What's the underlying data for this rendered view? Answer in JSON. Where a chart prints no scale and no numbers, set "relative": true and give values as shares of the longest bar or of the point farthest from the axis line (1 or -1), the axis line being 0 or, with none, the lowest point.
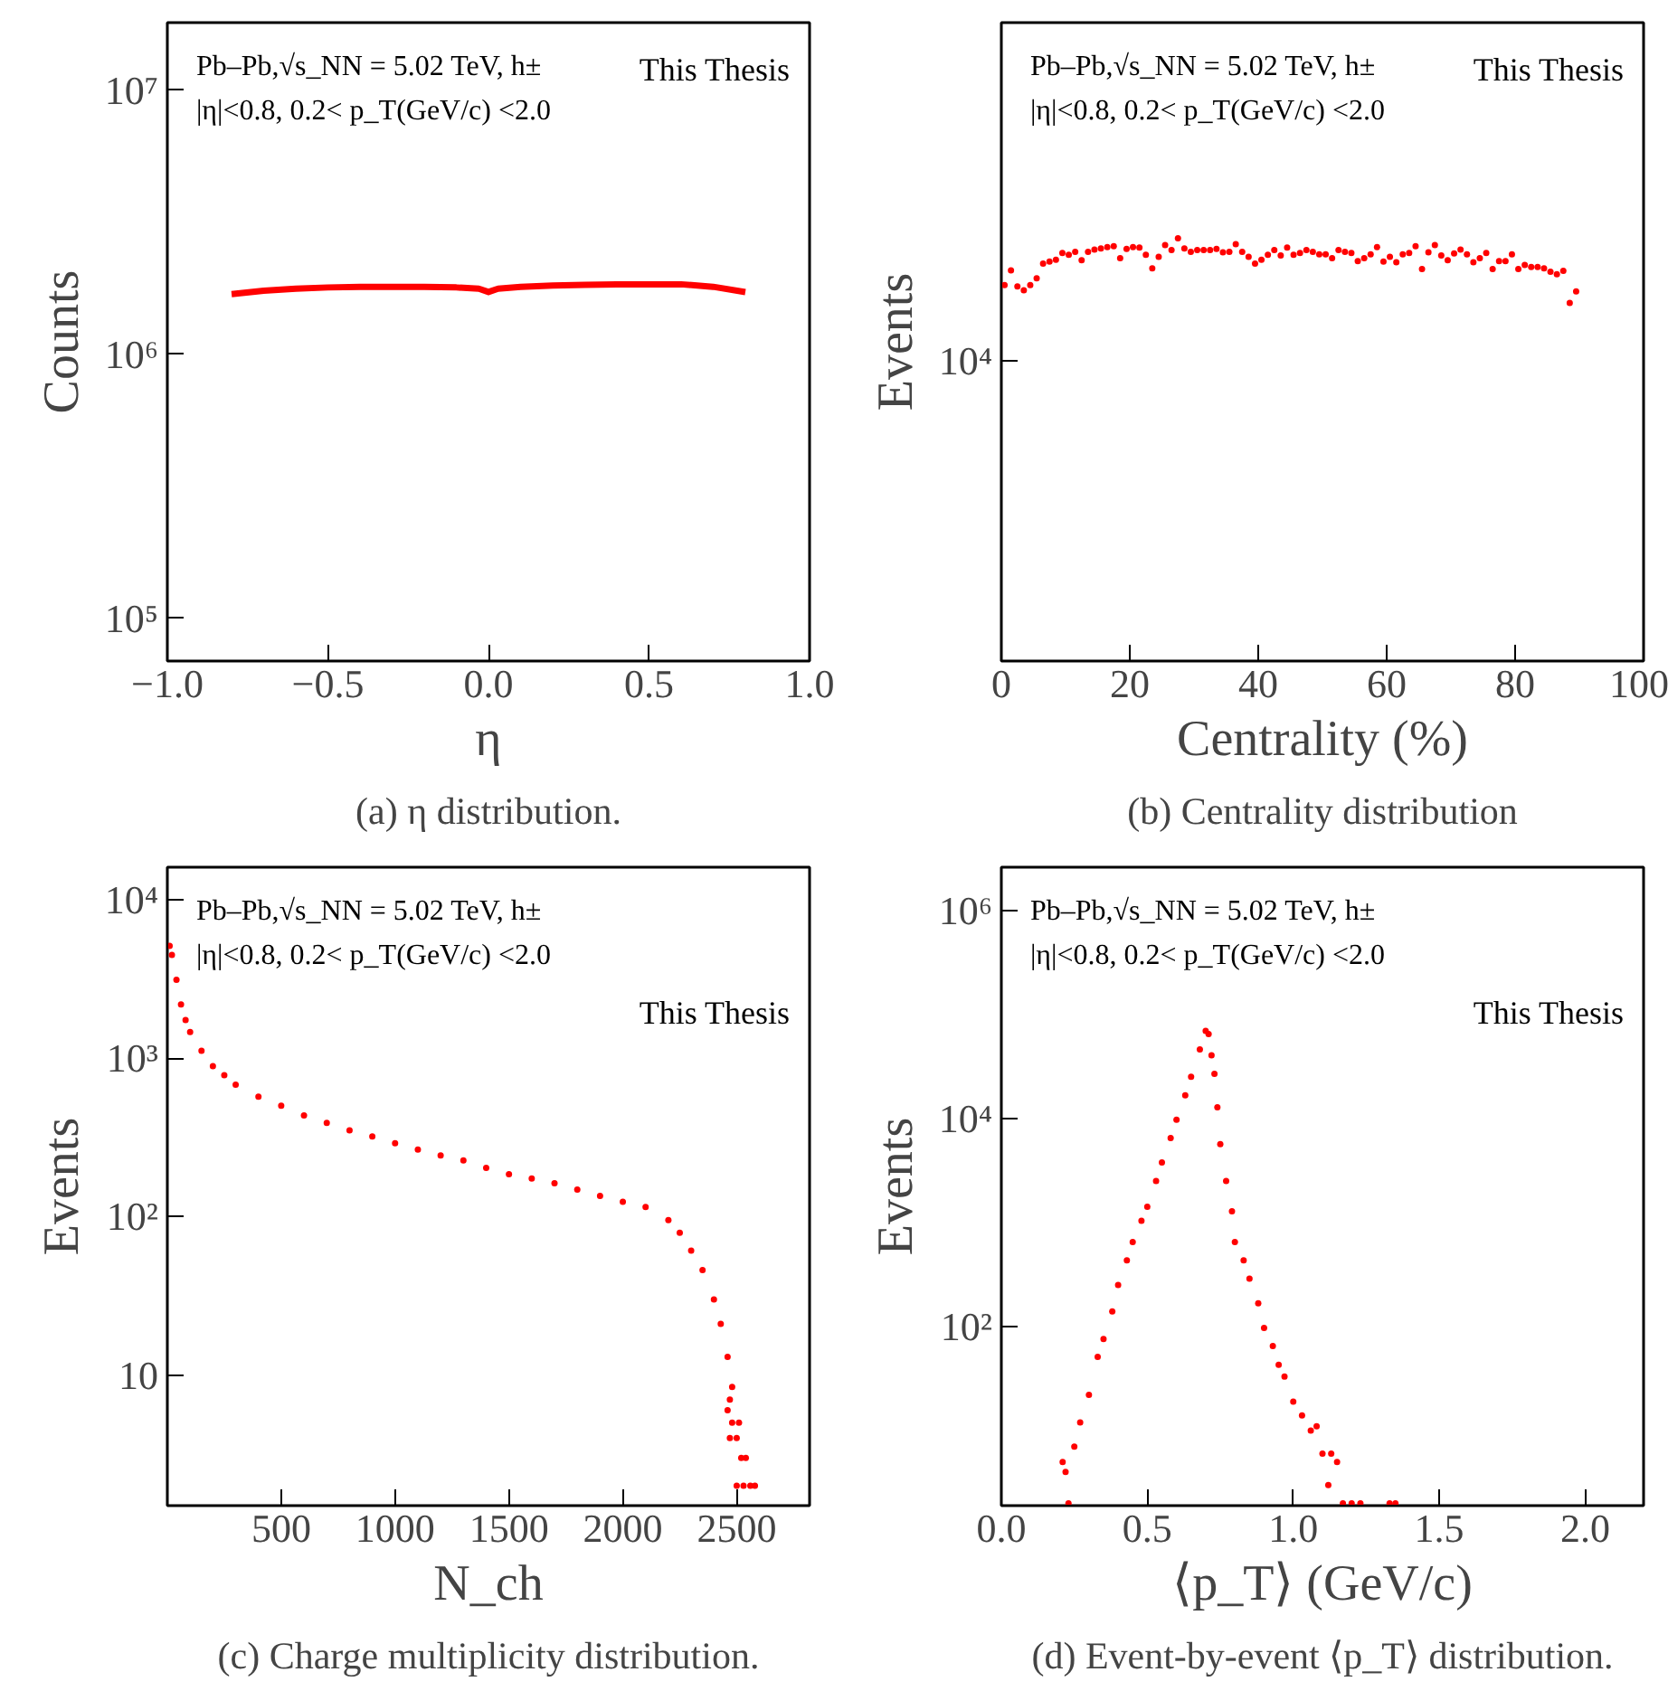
{
  "chart_data": [
    {
      "type": "line",
      "title": "(a) η distribution.",
      "xlabel": "η",
      "ylabel": "Counts",
      "log": "y",
      "color": "#ff0000",
      "marker": "none",
      "x": [
        -0.8,
        -0.7,
        -0.6,
        -0.5,
        -0.4,
        -0.3,
        -0.2,
        -0.1,
        -0.03,
        0,
        0.03,
        0.1,
        0.2,
        0.3,
        0.4,
        0.5,
        0.6,
        0.7,
        0.8
      ],
      "values": [
        1690000,
        1740000,
        1770000,
        1790000,
        1800000,
        1800000,
        1800000,
        1790000,
        1770000,
        1720000,
        1770000,
        1800000,
        1820000,
        1830000,
        1840000,
        1840000,
        1840000,
        1800000,
        1720000
      ],
      "xlim": [
        -1,
        1
      ],
      "ylim": [
        69000,
        18000000
      ],
      "xticks": [
        {
          "value": -1,
          "label": "−1.0"
        },
        {
          "value": -0.5,
          "label": "−0.5"
        },
        {
          "value": 0,
          "label": "0.0"
        },
        {
          "value": 0.5,
          "label": "0.5"
        },
        {
          "value": 1,
          "label": "1.0"
        }
      ],
      "yticks": [
        {
          "value": 100000,
          "label": "10⁵"
        },
        {
          "value": 1000000,
          "label": "10⁶"
        },
        {
          "value": 10000000,
          "label": "10⁷"
        }
      ],
      "annotations": [
        "Pb–Pb,√s_NN = 5.02 TeV, h±",
        "|η|<0.8, 0.2< p_T(GeV/c) <2.0",
        "This Thesis"
      ]
    },
    {
      "type": "scatter",
      "title": "(b) Centrality distribution",
      "xlabel": "Centrality (%)",
      "ylabel": "Events",
      "color": "#ff0000",
      "marker": "circle",
      "x": [
        0.5,
        1.5,
        2.5,
        3.5,
        4.5,
        5.5,
        6.5,
        7.5,
        8.5,
        9.5,
        10.5,
        11.5,
        12.5,
        13.5,
        14.5,
        15.5,
        16.5,
        17.5,
        18.5,
        19.5,
        20.5,
        21.5,
        22.5,
        23.5,
        24.5,
        25.5,
        26.5,
        27.5,
        28.5,
        29.5,
        30.5,
        31.5,
        32.5,
        33.5,
        34.5,
        35.5,
        36.5,
        37.5,
        38.5,
        39.5,
        40.5,
        41.5,
        42.5,
        43.5,
        44.5,
        45.5,
        46.5,
        47.5,
        48.5,
        49.5,
        50.5,
        51.5,
        52.5,
        53.5,
        54.5,
        55.5,
        56.5,
        57.5,
        58.5,
        59.5,
        60.5,
        61.5,
        62.5,
        63.5,
        64.5,
        65.5,
        66.5,
        67.5,
        68.5,
        69.5,
        70.5,
        71.5,
        72.5,
        73.5,
        74.5,
        75.5,
        76.5,
        77.5,
        78.5,
        79.5,
        80.5,
        81.5,
        82.5,
        83.5,
        84.5,
        85.5,
        86.5,
        87.5,
        88.5,
        89.5
      ],
      "values": [
        0.889,
        0.924,
        0.886,
        0.877,
        0.889,
        0.905,
        0.94,
        0.945,
        0.949,
        0.965,
        0.961,
        0.968,
        0.948,
        0.968,
        0.973,
        0.976,
        0.979,
        0.981,
        0.953,
        0.975,
        0.979,
        0.978,
        0.961,
        0.929,
        0.956,
        0.984,
        0.972,
        1,
        0.976,
        0.968,
        0.972,
        0.972,
        0.972,
        0.975,
        0.967,
        0.968,
        0.986,
        0.968,
        0.956,
        0.94,
        0.949,
        0.961,
        0.972,
        0.959,
        0.978,
        0.961,
        0.965,
        0.972,
        0.968,
        0.962,
        0.962,
        0.953,
        0.972,
        0.968,
        0.965,
        0.946,
        0.953,
        0.962,
        0.979,
        0.945,
        0.956,
        0.943,
        0.962,
        0.965,
        0.981,
        0.927,
        0.967,
        0.984,
        0.959,
        0.948,
        0.964,
        0.973,
        0.962,
        0.943,
        0.953,
        0.965,
        0.927,
        0.946,
        0.946,
        0.962,
        0.927,
        0.937,
        0.932,
        0.932,
        0.929,
        0.921,
        0.915,
        0.923,
        0.847,
        0.874
      ],
      "relative": true,
      "xlim": [
        0,
        100
      ],
      "xticks": [
        0,
        20,
        40,
        60,
        80,
        100
      ],
      "annotations": [
        "Pb–Pb,√s_NN = 5.02 TeV, h±",
        "|η|<0.8, 0.2< p_T(GeV/c) <2.0",
        "This Thesis",
        "10⁴"
      ]
    },
    {
      "type": "scatter",
      "title": "(c) Charge multiplicity distribution.",
      "xlabel": "N_ch",
      "ylabel": "Events",
      "log": "y",
      "color": "#ff0000",
      "marker": "circle",
      "x": [
        10,
        20,
        40,
        60,
        80,
        100,
        150,
        200,
        250,
        300,
        400,
        500,
        600,
        700,
        800,
        900,
        1000,
        1100,
        1200,
        1300,
        1400,
        1500,
        1600,
        1700,
        1800,
        1900,
        2000,
        2100,
        2200,
        2250,
        2300,
        2350,
        2400,
        2430,
        2460,
        2480,
        2470,
        2460,
        2480,
        2500,
        2470,
        2510,
        2520,
        2540,
        2500,
        2530,
        2560,
        2580
      ],
      "values": [
        5100,
        4470,
        3120,
        2180,
        1740,
        1460,
        1110,
        890,
        780,
        680,
        570,
        500,
        435,
        390,
        350,
        320,
        290,
        265,
        243,
        226,
        203,
        185,
        174,
        162,
        148,
        135,
        124,
        115,
        95,
        79,
        61,
        46,
        30,
        21,
        13,
        8.4,
        7,
        6,
        5,
        4,
        4,
        5,
        3,
        3,
        2,
        2,
        2,
        2
      ],
      "xlim": [
        0,
        2820
      ],
      "ylim": [
        1.5,
        16000
      ],
      "xticks": [
        500,
        1000,
        1500,
        2000,
        2500
      ],
      "yticks": [
        {
          "value": 10,
          "label": "10"
        },
        {
          "value": 100,
          "label": "10²"
        },
        {
          "value": 1000,
          "label": "10³"
        },
        {
          "value": 10000,
          "label": "10⁴"
        }
      ],
      "annotations": [
        "Pb–Pb,√s_NN = 5.02 TeV, h±",
        "|η|<0.8, 0.2< p_T(GeV/c) <2.0",
        "This Thesis"
      ]
    },
    {
      "type": "scatter",
      "title": "(d) Event-by-event ⟨p_T⟩ distribution.",
      "xlabel": "⟨p_T⟩ (GeV/c)",
      "ylabel": "Events",
      "log": "y",
      "color": "#ff0000",
      "marker": "circle",
      "x": [
        0.21,
        0.22,
        0.23,
        0.25,
        0.27,
        0.3,
        0.33,
        0.35,
        0.38,
        0.4,
        0.43,
        0.45,
        0.48,
        0.5,
        0.53,
        0.55,
        0.58,
        0.6,
        0.63,
        0.65,
        0.68,
        0.7,
        0.71,
        0.72,
        0.73,
        0.74,
        0.75,
        0.77,
        0.79,
        0.8,
        0.83,
        0.85,
        0.88,
        0.9,
        0.93,
        0.95,
        0.97,
        1.0,
        1.03,
        1.06,
        1.08,
        1.1,
        1.12,
        1.13,
        1.15,
        1.17,
        1.2,
        1.23,
        1.33,
        1.35
      ],
      "values": [
        5,
        4,
        2,
        7,
        12,
        22,
        51,
        76,
        140,
        251,
        432,
        649,
        1040,
        1420,
        2510,
        3770,
        6490,
        9730,
        16700,
        25100,
        46200,
        69300,
        64900,
        40400,
        26900,
        12800,
        5660,
        2510,
        1280,
        649,
        432,
        288,
        167,
        97,
        65,
        43,
        33,
        19,
        14,
        10,
        11,
        6,
        3,
        6,
        5,
        2,
        2,
        2,
        2,
        2
      ],
      "xlim": [
        0,
        2.2
      ],
      "ylim": [
        1.9,
        2600000
      ],
      "xticks": [
        {
          "value": 0,
          "label": "0.0"
        },
        {
          "value": 0.5,
          "label": "0.5"
        },
        {
          "value": 1,
          "label": "1.0"
        },
        {
          "value": 1.5,
          "label": "1.5"
        },
        {
          "value": 2,
          "label": "2.0"
        }
      ],
      "yticks": [
        {
          "value": 100,
          "label": "10²"
        },
        {
          "value": 10000,
          "label": "10⁴"
        },
        {
          "value": 1000000,
          "label": "10⁶"
        }
      ],
      "annotations": [
        "Pb–Pb,√s_NN = 5.02 TeV, h±",
        "|η|<0.8, 0.2< p_T(GeV/c) <2.0",
        "This Thesis"
      ]
    }
  ]
}
